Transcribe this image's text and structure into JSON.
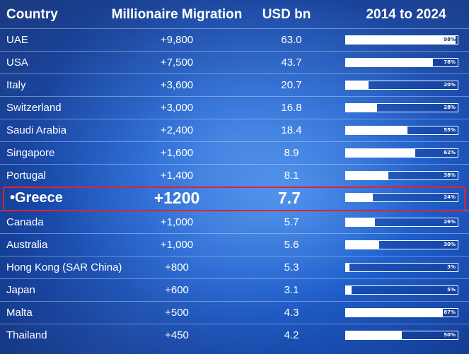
{
  "header": {
    "country": "Country",
    "migration": "Millionaire Migration",
    "usd": "USD bn",
    "range": "2014 to 2024"
  },
  "highlight_country": "Greece",
  "rows": [
    {
      "country": "UAE",
      "migration": "+9,800",
      "usd": "63.0",
      "pct": 98,
      "pct_label": "98%"
    },
    {
      "country": "USA",
      "migration": "+7,500",
      "usd": "43.7",
      "pct": 78,
      "pct_label": "78%"
    },
    {
      "country": "Italy",
      "migration": "+3,600",
      "usd": "20.7",
      "pct": 20,
      "pct_label": "20%"
    },
    {
      "country": "Switzerland",
      "migration": "+3,000",
      "usd": "16.8",
      "pct": 28,
      "pct_label": "28%"
    },
    {
      "country": "Saudi Arabia",
      "migration": "+2,400",
      "usd": "18.4",
      "pct": 55,
      "pct_label": "55%"
    },
    {
      "country": "Singapore",
      "migration": "+1,600",
      "usd": "8.9",
      "pct": 62,
      "pct_label": "62%"
    },
    {
      "country": "Portugal",
      "migration": "+1,400",
      "usd": "8.1",
      "pct": 38,
      "pct_label": "38%"
    },
    {
      "country": "•Greece",
      "migration": "+1200",
      "usd": "7.7",
      "pct": 24,
      "pct_label": "24%",
      "highlight": true
    },
    {
      "country": "Canada",
      "migration": "+1,000",
      "usd": "5.7",
      "pct": 26,
      "pct_label": "26%"
    },
    {
      "country": "Australia",
      "migration": "+1,000",
      "usd": "5.6",
      "pct": 30,
      "pct_label": "30%"
    },
    {
      "country": "Hong Kong (SAR China)",
      "migration": "+800",
      "usd": "5.3",
      "pct": 3,
      "pct_label": "3%"
    },
    {
      "country": "Japan",
      "migration": "+600",
      "usd": "3.1",
      "pct": 5,
      "pct_label": "5%"
    },
    {
      "country": "Malta",
      "migration": "+500",
      "usd": "4.3",
      "pct": 87,
      "pct_label": "87%"
    },
    {
      "country": "Thailand",
      "migration": "+450",
      "usd": "4.2",
      "pct": 50,
      "pct_label": "50%"
    }
  ],
  "chart_data": {
    "type": "table",
    "columns": [
      "Country",
      "Millionaire Migration",
      "USD bn",
      "2014 to 2024"
    ],
    "categories": [
      "UAE",
      "USA",
      "Italy",
      "Switzerland",
      "Saudi Arabia",
      "Singapore",
      "Portugal",
      "Greece",
      "Canada",
      "Australia",
      "Hong Kong (SAR China)",
      "Japan",
      "Malta",
      "Thailand"
    ],
    "series": [
      {
        "name": "Millionaire Migration",
        "values": [
          9800,
          7500,
          3600,
          3000,
          2400,
          1600,
          1400,
          1200,
          1000,
          1000,
          800,
          600,
          500,
          450
        ]
      },
      {
        "name": "USD bn",
        "values": [
          63.0,
          43.7,
          20.7,
          16.8,
          18.4,
          8.9,
          8.1,
          7.7,
          5.7,
          5.6,
          5.3,
          3.1,
          4.3,
          4.2
        ]
      },
      {
        "name": "2014 to 2024",
        "values": [
          98,
          78,
          20,
          28,
          55,
          62,
          38,
          24,
          26,
          30,
          3,
          5,
          87,
          50
        ]
      }
    ]
  },
  "colors": {
    "background": "#1f5fcc",
    "highlight_border": "#e8202a",
    "bar_fill": "#ffffff"
  }
}
